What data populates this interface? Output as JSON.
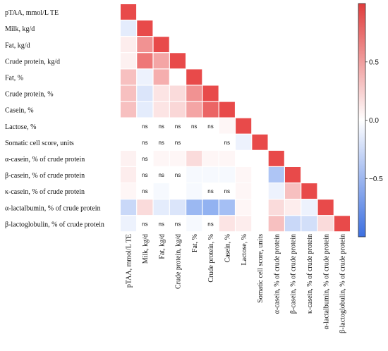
{
  "chart_data": {
    "type": "heatmap",
    "variables": [
      "pTAA, mmol/L TE",
      "Milk, kg/d",
      "Fat, kg/d",
      "Crude protein, kg/d",
      "Fat, %",
      "Crude protein, %",
      "Casein, %",
      "Lactose, %",
      "Somatic cell score, units",
      "α-casein, % of crude protein",
      "β-casein, % of crude protein",
      "κ-casein, % of crude protein",
      "α-lactalbumin, % of crude protein",
      "β-lactoglobulin, % of crude protein"
    ],
    "matrix": [
      [
        1.0
      ],
      [
        -0.15,
        1.0
      ],
      [
        0.1,
        0.6,
        1.0
      ],
      [
        0.08,
        0.75,
        0.5,
        1.0
      ],
      [
        0.35,
        -0.1,
        0.45,
        0.0,
        1.0
      ],
      [
        0.35,
        -0.2,
        0.15,
        0.2,
        0.6,
        1.0
      ],
      [
        0.35,
        -0.15,
        0.15,
        0.22,
        0.5,
        0.85,
        1.0
      ],
      [
        0.0,
        0.0,
        0.0,
        0.0,
        0.0,
        0.0,
        0.05,
        1.0
      ],
      [
        0.0,
        0.0,
        0.0,
        0.0,
        0.0,
        0.0,
        0.0,
        -0.1,
        1.0
      ],
      [
        0.08,
        0.0,
        0.05,
        0.05,
        0.2,
        0.05,
        0.05,
        0.0,
        0.0,
        1.0
      ],
      [
        0.1,
        0.0,
        0.0,
        0.0,
        -0.05,
        -0.05,
        -0.05,
        0.05,
        0.0,
        -0.45,
        1.0
      ],
      [
        0.05,
        0.0,
        -0.05,
        0.0,
        -0.05,
        0.0,
        0.0,
        0.05,
        0.0,
        -0.1,
        0.35,
        1.0
      ],
      [
        -0.3,
        0.2,
        -0.15,
        -0.2,
        -0.55,
        -0.6,
        -0.5,
        0.05,
        0.0,
        0.2,
        0.1,
        -0.1,
        1.0
      ],
      [
        -0.1,
        0.0,
        0.0,
        0.0,
        -0.05,
        0.0,
        0.15,
        0.1,
        0.0,
        0.35,
        -0.3,
        -0.25,
        0.2,
        1.0
      ]
    ],
    "ns_cells": [
      [
        7,
        1
      ],
      [
        7,
        2
      ],
      [
        7,
        3
      ],
      [
        7,
        4
      ],
      [
        7,
        5
      ],
      [
        8,
        1
      ],
      [
        8,
        2
      ],
      [
        8,
        3
      ],
      [
        8,
        6
      ],
      [
        9,
        1
      ],
      [
        10,
        1
      ],
      [
        10,
        2
      ],
      [
        10,
        3
      ],
      [
        11,
        1
      ],
      [
        11,
        5
      ],
      [
        11,
        6
      ],
      [
        13,
        1
      ],
      [
        13,
        2
      ],
      [
        13,
        3
      ],
      [
        13,
        5
      ]
    ],
    "ns_label": "ns",
    "colorbar": {
      "range": [
        -1,
        1
      ],
      "ticks": [
        0.5,
        0.0,
        -0.5
      ],
      "tick_labels": [
        "0.5",
        "0.0",
        "−0.5"
      ]
    },
    "colors": {
      "positive": "#e84a4a",
      "negative": "#4a7ee8",
      "neutral": "#ffffff"
    }
  }
}
